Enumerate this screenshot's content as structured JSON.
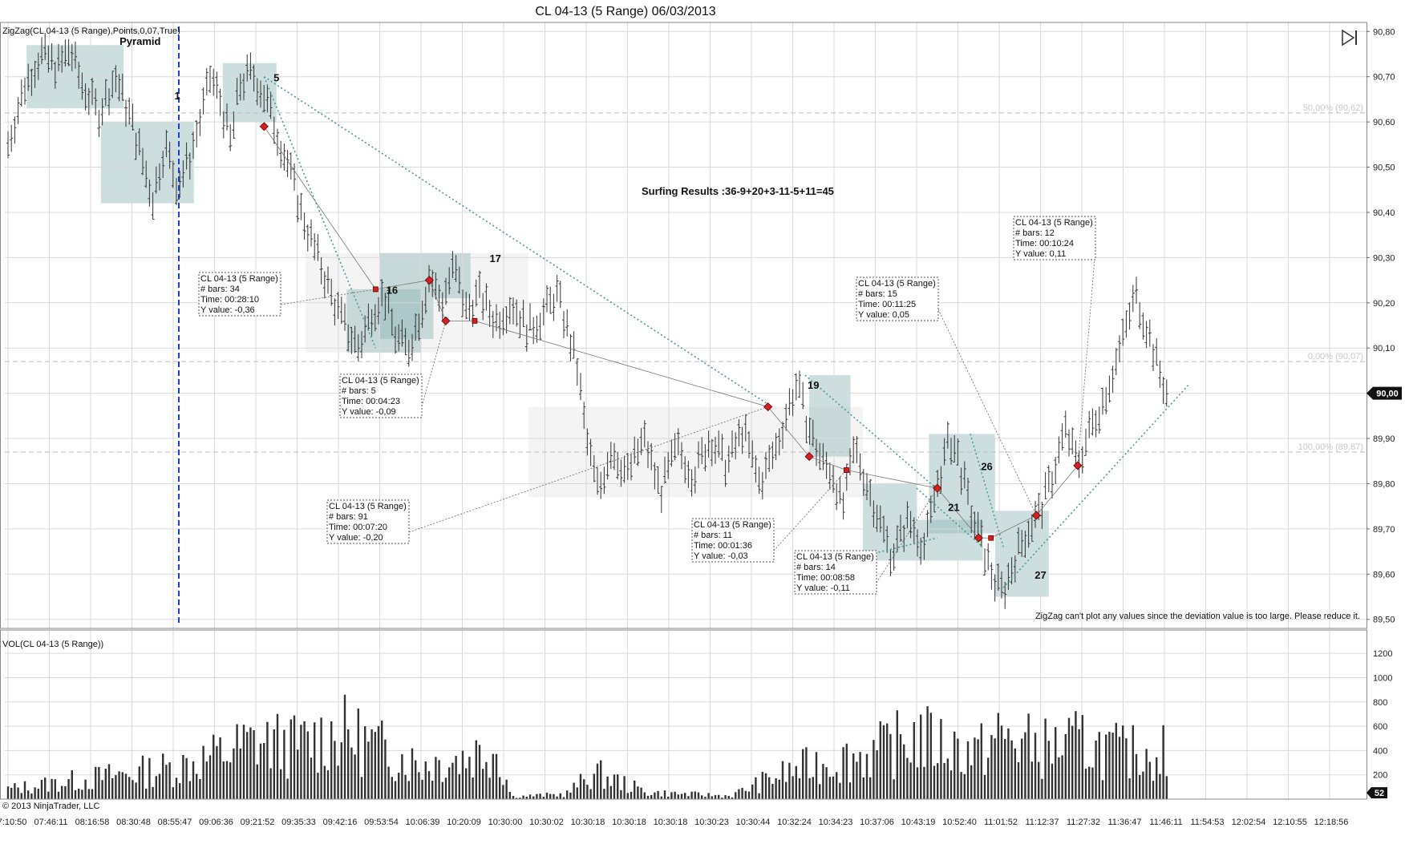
{
  "title": "CL 04-13 (5 Range)  06/03/2013",
  "indicator_label": "ZigZag(CL 04-13 (5 Range),Points,0,07,True)",
  "volume_label": "VOL(CL 04-13 (5 Range))",
  "copyright": "© 2013 NinjaTrader, LLC",
  "surfing_results": "Surfing Results :36-9+20+3-11-5+11=45",
  "zigzag_warning": "ZigZag can't plot any values since the deviation value is too large. Please reduce it.",
  "skip_icon": "skip-to-end-icon",
  "colors": {
    "grid": "#d9d9d9",
    "bar": "#333333",
    "zone_teal": "#8fb5b5",
    "zone_gray": "#d8d8d8",
    "dotted_teal": "#4a9a9a",
    "marker": "#d62020",
    "blue_line": "#1a3fd6"
  },
  "fib_labels": [
    {
      "text": "50,00% (90,62)",
      "price": 90.62
    },
    {
      "text": "0,00% (90,07)",
      "price": 90.07
    },
    {
      "text": "100,00% (89,87)",
      "price": 89.87
    }
  ],
  "price_marker": "90,00",
  "volume_marker": "52",
  "zone_labels": [
    {
      "text": "Pyramid",
      "time_index": 3.2,
      "price": 90.77
    },
    {
      "text": "1",
      "time_index": 4.1,
      "price": 90.65
    },
    {
      "text": "5",
      "time_index": 6.5,
      "price": 90.69
    },
    {
      "text": "16",
      "time_index": 9.3,
      "price": 90.22
    },
    {
      "text": "17",
      "time_index": 11.8,
      "price": 90.29
    },
    {
      "text": "19",
      "time_index": 19.5,
      "price": 90.01
    },
    {
      "text": "21",
      "time_index": 22.9,
      "price": 89.74
    },
    {
      "text": "26",
      "time_index": 23.7,
      "price": 89.83
    },
    {
      "text": "27",
      "time_index": 25.0,
      "price": 89.59
    }
  ],
  "info_boxes": [
    {
      "lines": [
        "CL 04-13 (5 Range)",
        "# bars:   34",
        "Time:     00:28:10",
        "Y value:  -0,36"
      ]
    },
    {
      "lines": [
        "CL 04-13 (5 Range)",
        "# bars:   5",
        "Time:     00:04:23",
        "Y value:  -0,09"
      ]
    },
    {
      "lines": [
        "CL 04-13 (5 Range)",
        "# bars:   91",
        "Time:     00:07:20",
        "Y value:  -0,20"
      ]
    },
    {
      "lines": [
        "CL 04-13 (5 Range)",
        "# bars:   11",
        "Time:     00:01:36",
        "Y value:  -0,03"
      ]
    },
    {
      "lines": [
        "CL 04-13 (5 Range)",
        "# bars:   14",
        "Time:     00:08:58",
        "Y value:  -0,11"
      ]
    },
    {
      "lines": [
        "CL 04-13 (5 Range)",
        "# bars:   15",
        "Time:     00:11:25",
        "Y value:  0,05"
      ]
    },
    {
      "lines": [
        "CL 04-13 (5 Range)",
        "# bars:   12",
        "Time:     00:10:24",
        "Y value:  0,11"
      ]
    }
  ],
  "chart_data": [
    {
      "type": "bar",
      "subtype": "ohlc-range-bars",
      "title": "CL 04-13 (5 Range)  06/03/2013",
      "x_tick_labels": [
        "07:10:50",
        "07:46:11",
        "08:16:58",
        "08:30:48",
        "08:55:47",
        "09:06:36",
        "09:21:52",
        "09:35:33",
        "09:42:16",
        "09:53:54",
        "10:06:39",
        "10:20:09",
        "10:30:00",
        "10:30:02",
        "10:30:18",
        "10:30:18",
        "10:30:18",
        "10:30:23",
        "10:30:44",
        "10:32:24",
        "10:34:23",
        "10:37:06",
        "10:43:19",
        "10:52:40",
        "11:01:52",
        "11:12:37",
        "11:27:32",
        "11:36:47",
        "11:46:11",
        "11:54:53",
        "12:02:54",
        "12:10:55",
        "12:18:56"
      ],
      "y_tick_labels": [
        "90,80",
        "90,70",
        "90,60",
        "90,50",
        "90,40",
        "90,30",
        "90,20",
        "90,10",
        "90,00",
        "89,90",
        "89,80",
        "89,70",
        "89,60",
        "89,50"
      ],
      "ylim": [
        89.48,
        90.82
      ],
      "grid": true,
      "price_path": [
        [
          0,
          90.55
        ],
        [
          0.4,
          90.68
        ],
        [
          0.8,
          90.75
        ],
        [
          1.2,
          90.72
        ],
        [
          1.5,
          90.76
        ],
        [
          1.8,
          90.68
        ],
        [
          2.2,
          90.62
        ],
        [
          2.6,
          90.7
        ],
        [
          3.0,
          90.6
        ],
        [
          3.3,
          90.5
        ],
        [
          3.5,
          90.43
        ],
        [
          3.8,
          90.55
        ],
        [
          4.1,
          90.46
        ],
        [
          4.4,
          90.52
        ],
        [
          4.7,
          90.62
        ],
        [
          4.9,
          90.7
        ],
        [
          5.1,
          90.66
        ],
        [
          5.4,
          90.55
        ],
        [
          5.6,
          90.68
        ],
        [
          5.9,
          90.71
        ],
        [
          6.2,
          90.66
        ],
        [
          6.5,
          90.58
        ],
        [
          6.8,
          90.5
        ],
        [
          7.1,
          90.4
        ],
        [
          7.5,
          90.3
        ],
        [
          7.9,
          90.2
        ],
        [
          8.2,
          90.14
        ],
        [
          8.5,
          90.1
        ],
        [
          8.8,
          90.18
        ],
        [
          9.1,
          90.22
        ],
        [
          9.4,
          90.12
        ],
        [
          9.7,
          90.1
        ],
        [
          10.0,
          90.18
        ],
        [
          10.2,
          90.26
        ],
        [
          10.5,
          90.2
        ],
        [
          10.8,
          90.28
        ],
        [
          11.1,
          90.18
        ],
        [
          11.4,
          90.22
        ],
        [
          11.8,
          90.16
        ],
        [
          12.2,
          90.2
        ],
        [
          12.6,
          90.14
        ],
        [
          13.0,
          90.18
        ],
        [
          13.3,
          90.22
        ],
        [
          13.6,
          90.12
        ],
        [
          13.8,
          90.05
        ],
        [
          14.0,
          89.9
        ],
        [
          14.3,
          89.78
        ],
        [
          14.6,
          89.88
        ],
        [
          15.0,
          89.82
        ],
        [
          15.4,
          89.9
        ],
        [
          15.8,
          89.78
        ],
        [
          16.2,
          89.88
        ],
        [
          16.6,
          89.82
        ],
        [
          17.0,
          89.9
        ],
        [
          17.4,
          89.84
        ],
        [
          17.8,
          89.92
        ],
        [
          18.2,
          89.8
        ],
        [
          18.6,
          89.88
        ],
        [
          18.9,
          89.97
        ],
        [
          19.1,
          90.02
        ],
        [
          19.4,
          89.92
        ],
        [
          19.7,
          89.85
        ],
        [
          20.0,
          89.82
        ],
        [
          20.2,
          89.74
        ],
        [
          20.5,
          89.88
        ],
        [
          20.8,
          89.8
        ],
        [
          21.1,
          89.72
        ],
        [
          21.4,
          89.64
        ],
        [
          21.8,
          89.72
        ],
        [
          22.2,
          89.66
        ],
        [
          22.5,
          89.8
        ],
        [
          22.8,
          89.9
        ],
        [
          23.0,
          89.86
        ],
        [
          23.3,
          89.74
        ],
        [
          23.6,
          89.66
        ],
        [
          23.9,
          89.58
        ],
        [
          24.1,
          89.56
        ],
        [
          24.4,
          89.64
        ],
        [
          24.7,
          89.7
        ],
        [
          25.0,
          89.74
        ],
        [
          25.3,
          89.82
        ],
        [
          25.6,
          89.92
        ],
        [
          25.9,
          89.84
        ],
        [
          26.2,
          89.92
        ],
        [
          26.5,
          89.98
        ],
        [
          26.8,
          90.06
        ],
        [
          27.0,
          90.12
        ],
        [
          27.3,
          90.22
        ],
        [
          27.6,
          90.14
        ],
        [
          27.9,
          90.04
        ],
        [
          28.1,
          89.99
        ]
      ],
      "zigzag_points": [
        {
          "time_index": 6.2,
          "price": 90.59
        },
        {
          "time_index": 8.9,
          "price": 90.23
        },
        {
          "time_index": 10.2,
          "price": 90.25
        },
        {
          "time_index": 10.6,
          "price": 90.16
        },
        {
          "time_index": 11.3,
          "price": 90.16
        },
        {
          "time_index": 18.4,
          "price": 89.97
        },
        {
          "time_index": 19.4,
          "price": 89.86
        },
        {
          "time_index": 20.3,
          "price": 89.83
        },
        {
          "time_index": 22.5,
          "price": 89.79
        },
        {
          "time_index": 23.5,
          "price": 89.68
        },
        {
          "time_index": 23.8,
          "price": 89.68
        },
        {
          "time_index": 24.9,
          "price": 89.73
        },
        {
          "time_index": 25.9,
          "price": 89.84
        }
      ],
      "current_price": 90.0
    },
    {
      "type": "bar",
      "title": "VOL(CL 04-13 (5 Range))",
      "y_tick_labels": [
        "1200",
        "1000",
        "800",
        "600",
        "400",
        "200"
      ],
      "ylim": [
        0,
        1300
      ],
      "current_value": 52,
      "volume_profile": [
        [
          0,
          120
        ],
        [
          2,
          250
        ],
        [
          4,
          380
        ],
        [
          5,
          520
        ],
        [
          6,
          700
        ],
        [
          7,
          650
        ],
        [
          8,
          820
        ],
        [
          9,
          620
        ],
        [
          10,
          420
        ],
        [
          11,
          500
        ],
        [
          11.8,
          640
        ],
        [
          12.2,
          30
        ],
        [
          13.5,
          60
        ],
        [
          14.2,
          320
        ],
        [
          15.5,
          80
        ],
        [
          17.5,
          40
        ],
        [
          18.5,
          260
        ],
        [
          19.5,
          420
        ],
        [
          21,
          560
        ],
        [
          22,
          760
        ],
        [
          22.5,
          680
        ],
        [
          23.5,
          560
        ],
        [
          24,
          760
        ],
        [
          25,
          620
        ],
        [
          26,
          680
        ],
        [
          27,
          560
        ],
        [
          28,
          600
        ],
        [
          28.1,
          60
        ]
      ]
    }
  ]
}
